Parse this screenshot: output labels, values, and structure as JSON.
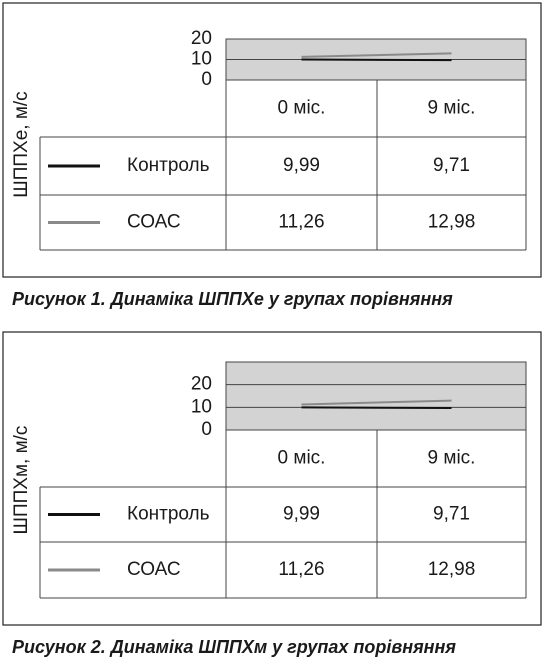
{
  "chart_data": [
    {
      "type": "line",
      "title": "Рисунок 1. Динаміка ШППХе у групах порівняння",
      "y_label": "ШППХе, м/с",
      "categories": [
        "0 міс.",
        "9 міс."
      ],
      "series": [
        {
          "name": "Контроль",
          "color": "#111111",
          "values": [
            9.99,
            9.71
          ],
          "value_labels": [
            "9,99",
            "9,71"
          ]
        },
        {
          "name": "СОАС",
          "color": "#8a8a8a",
          "values": [
            11.26,
            12.98
          ],
          "value_labels": [
            "11,26",
            "12,98"
          ]
        }
      ],
      "ylim": [
        0,
        20
      ],
      "yticks": [
        0,
        10,
        20
      ],
      "grid": true
    },
    {
      "type": "line",
      "title": "Рисунок 2. Динаміка ШППХм у групах порівняння",
      "y_label": "ШППХм, м/с",
      "categories": [
        "0 міс.",
        "9 міс."
      ],
      "series": [
        {
          "name": "Контроль",
          "color": "#111111",
          "values": [
            9.99,
            9.71
          ],
          "value_labels": [
            "9,99",
            "9,71"
          ]
        },
        {
          "name": "СОАС",
          "color": "#8a8a8a",
          "values": [
            11.26,
            12.98
          ],
          "value_labels": [
            "11,26",
            "12,98"
          ]
        }
      ],
      "ylim": [
        0,
        30
      ],
      "yticks": [
        0,
        10,
        20
      ],
      "grid": true
    }
  ]
}
